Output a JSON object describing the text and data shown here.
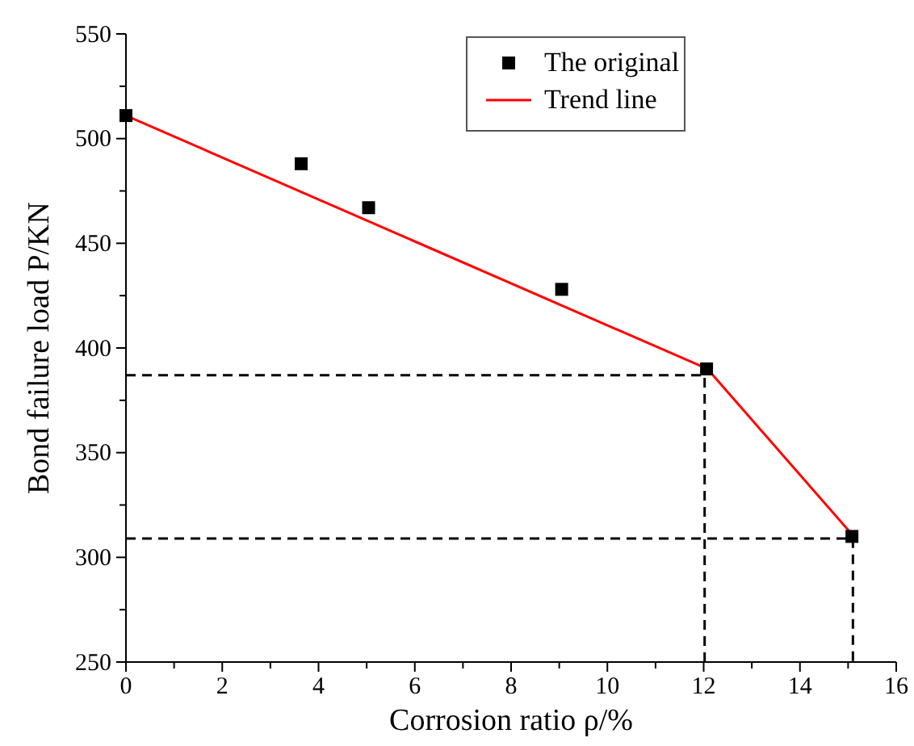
{
  "chart_data": {
    "type": "scatter",
    "xlabel": "Corrosion ratio ρ/%",
    "ylabel": "Bond failure load P/KN",
    "xlim": [
      0,
      16
    ],
    "ylim": [
      250,
      550
    ],
    "xticks": [
      0,
      {
        "value": 1,
        "label": null
      },
      2,
      {
        "value": 3,
        "label": null
      },
      4,
      {
        "value": 5,
        "label": null
      },
      6,
      {
        "value": 7,
        "label": null
      },
      8,
      {
        "value": 9,
        "label": null
      },
      10,
      {
        "value": 11,
        "label": null
      },
      12,
      {
        "value": 13,
        "label": null
      },
      14,
      {
        "value": 15,
        "label": null
      },
      16
    ],
    "yticks": [
      250,
      {
        "value": 275,
        "label": null
      },
      300,
      {
        "value": 325,
        "label": null
      },
      350,
      {
        "value": 375,
        "label": null
      },
      400,
      {
        "value": 425,
        "label": null
      },
      450,
      {
        "value": 475,
        "label": null
      },
      500,
      {
        "value": 525,
        "label": null
      },
      550
    ],
    "grid": false,
    "legend": "top",
    "series": [
      {
        "name": "The original",
        "marker": "square",
        "color": "#000000",
        "x": [
          0,
          3.64,
          5.04,
          9.05,
          12.06,
          15.08
        ],
        "values": [
          511,
          488,
          467,
          428,
          390,
          310
        ]
      },
      {
        "name": "Trend line",
        "type": "line",
        "color": "#ff0000",
        "x": [
          0,
          12.08,
          15.08
        ],
        "values": [
          511,
          390,
          311
        ]
      },
      {
        "type": "line",
        "color": "#000000",
        "line_style": "dashed",
        "x": [
          0,
          12.02,
          12.02
        ],
        "values": [
          387,
          387,
          250
        ]
      },
      {
        "type": "line",
        "color": "#000000",
        "line_style": "dashed",
        "x": [
          0,
          15.1,
          15.1
        ],
        "values": [
          309,
          309,
          250
        ]
      }
    ]
  }
}
